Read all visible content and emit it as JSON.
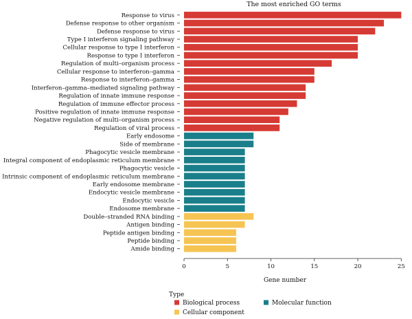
{
  "chart_data": {
    "type": "bar",
    "orientation": "horizontal",
    "title": "The most enriched GO terms",
    "xlabel": "Gene number",
    "ylabel": "",
    "xlim": [
      0,
      26
    ],
    "x_ticks": [
      0,
      5,
      10,
      15,
      20,
      25
    ],
    "grid": false,
    "legend": {
      "title": "Type",
      "placement": "bottom-left",
      "entries": [
        {
          "name": "Biological process",
          "color": "#D63A34"
        },
        {
          "name": "Molecular function",
          "color": "#1A7F8A"
        },
        {
          "name": "Cellular component",
          "color": "#F6C453"
        }
      ]
    },
    "categories": [
      "Response to virus",
      "Defense response to other organism",
      "Defense response to virus",
      "Type I interferon signaling pathway",
      "Cellular response to type I interferon",
      "Response to type I interferon",
      "Regulation of multi–organism process",
      "Cellular response to interferon–gamma",
      "Response to interferon–gamma",
      "Interferon–gamma–mediated signaling pathway",
      "Regulation of innate immune response",
      "Regulation of immune effector process",
      "Positive regulation of innate immune response",
      "Negative regulation of multi–organism process",
      "Regulation of viral process",
      "Early endosome",
      "Side of membrane",
      "Phagocytic vesicle membrane",
      "Integral component of endoplasmic reticulum membrane",
      "Phagocytic vesicle",
      "Intrinsic component of endoplasmic reticulum membrane",
      "Early endosome membrane",
      "Endocytic vesicle membrane",
      "Endocytic vesicle",
      "Endosome membrane",
      "Double–stranded RNA binding",
      "Antigen binding",
      "Peptide antigen binding",
      "Peptide binding",
      "Amide binding"
    ],
    "values": [
      25,
      23,
      22,
      20,
      20,
      20,
      17,
      15,
      15,
      14,
      14,
      13,
      12,
      11,
      11,
      8,
      8,
      7,
      7,
      7,
      7,
      7,
      7,
      7,
      7,
      8,
      7,
      6,
      6,
      6
    ],
    "types": [
      "Biological process",
      "Biological process",
      "Biological process",
      "Biological process",
      "Biological process",
      "Biological process",
      "Biological process",
      "Biological process",
      "Biological process",
      "Biological process",
      "Biological process",
      "Biological process",
      "Biological process",
      "Biological process",
      "Biological process",
      "Molecular function",
      "Molecular function",
      "Molecular function",
      "Molecular function",
      "Molecular function",
      "Molecular function",
      "Molecular function",
      "Molecular function",
      "Molecular function",
      "Molecular function",
      "Cellular component",
      "Cellular component",
      "Cellular component",
      "Cellular component",
      "Cellular component"
    ]
  }
}
